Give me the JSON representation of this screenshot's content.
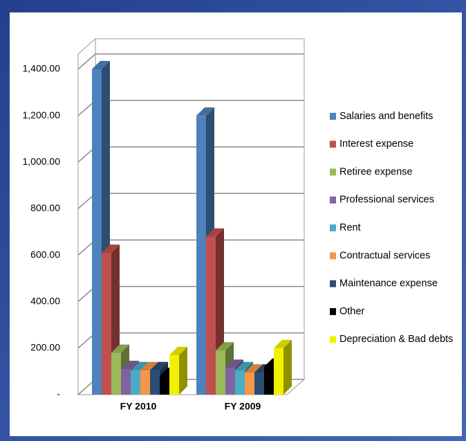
{
  "chart_data": {
    "type": "bar3d",
    "categories": [
      "FY 2010",
      "FY 2009"
    ],
    "series": [
      {
        "name": "Salaries and benefits",
        "color": "#4f81bd",
        "values": [
          1400,
          1200
        ]
      },
      {
        "name": "Interest expense",
        "color": "#c0504d",
        "values": [
          610,
          680
        ]
      },
      {
        "name": "Retiree expense",
        "color": "#9bbb59",
        "values": [
          180,
          190
        ]
      },
      {
        "name": "Professional services",
        "color": "#8064a2",
        "values": [
          110,
          115
        ]
      },
      {
        "name": "Rent",
        "color": "#4bacc6",
        "values": [
          105,
          105
        ]
      },
      {
        "name": "Contractual services",
        "color": "#f79646",
        "values": [
          105,
          95
        ]
      },
      {
        "name": "Maintenance expense",
        "color": "#2c4d75",
        "values": [
          105,
          95
        ]
      },
      {
        "name": "Other",
        "color": "#000000",
        "values": [
          80,
          120
        ]
      },
      {
        "name": "Depreciation & Bad debts",
        "color": "#f2f200",
        "values": [
          170,
          200
        ]
      }
    ],
    "ylim": [
      0,
      1400
    ],
    "yticks": [
      {
        "value": 0,
        "label": "-"
      },
      {
        "value": 200,
        "label": "200.00"
      },
      {
        "value": 400,
        "label": "400.00"
      },
      {
        "value": 600,
        "label": "600.00"
      },
      {
        "value": 800,
        "label": "800.00"
      },
      {
        "value": 1000,
        "label": "1,000.00"
      },
      {
        "value": 1200,
        "label": "1,200.00"
      },
      {
        "value": 1400,
        "label": "1,400.00"
      }
    ],
    "grid": true,
    "legend": "right"
  }
}
